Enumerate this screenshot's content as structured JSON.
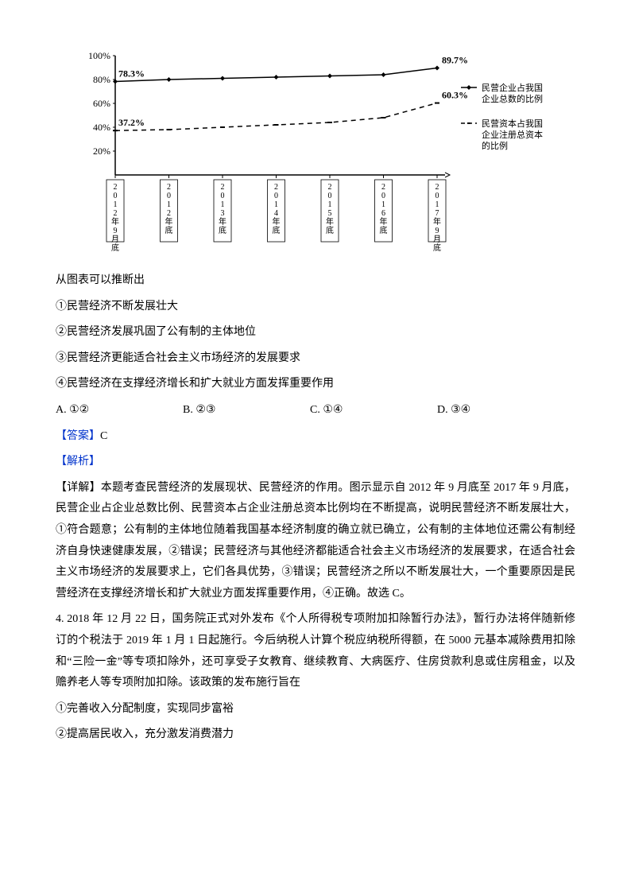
{
  "chart": {
    "type": "line",
    "categories": [
      "2012年9月底",
      "2012年底",
      "2013年底",
      "2014年底",
      "2015年底",
      "2016年底",
      "2017年9月底"
    ],
    "series": [
      {
        "name": "民营企业占我国企业总数的比例",
        "values": [
          78.3,
          80,
          81,
          82,
          83,
          84,
          89.7
        ],
        "style": "solid",
        "marker": "diamond",
        "color": "#000000",
        "start_label": "78.3%",
        "end_label": "89.7%"
      },
      {
        "name": "民营资本占我国企业注册总资本的比例",
        "values": [
          37.2,
          38,
          40,
          42,
          44,
          48,
          60.3
        ],
        "style": "dash",
        "marker": "dash",
        "color": "#000000",
        "start_label": "37.2%",
        "end_label": "60.3%"
      }
    ],
    "ylim": [
      0,
      100
    ],
    "ytick_step": 20,
    "ytick_suffix": "%",
    "background_color": "#ffffff",
    "axis_color": "#000000",
    "label_fontsize": 12,
    "text_color": "#000000"
  },
  "lead": "从图表可以推断出",
  "points": {
    "p1": "①民营经济不断发展壮大",
    "p2": "②民营经济发展巩固了公有制的主体地位",
    "p3": "③民营经济更能适合社会主义市场经济的发展要求",
    "p4": "④民营经济在支撑经济增长和扩大就业方面发挥重要作用"
  },
  "options": {
    "a": "A.  ①②",
    "b": "B.  ②③",
    "c": "C.  ①④",
    "d": "D.  ③④"
  },
  "answer_label": "【答案】",
  "answer_value": "C",
  "analysis_label": "【解析】",
  "explanation": "【详解】本题考查民营经济的发展现状、民营经济的作用。图示显示自 2012 年 9 月底至 2017 年 9 月底，民营企业占企业总数比例、民营资本占企业注册总资本比例均在不断提高，说明民营经济不断发展壮大，①符合题意；公有制的主体地位随着我国基本经济制度的确立就已确立，公有制的主体地位还需公有制经济自身快速健康发展，②错误；民营经济与其他经济都能适合社会主义市场经济的发展要求，在适合社会主义市场经济的发展要求上，它们各具优势，③错误；民营经济之所以不断发展壮大，一个重要原因是民营经济在支撑经济增长和扩大就业方面发挥重要作用，④正确。故选 C。",
  "q4": {
    "stem": "4. 2018 年 12 月 22 日，国务院正式对外发布《个人所得税专项附加扣除暂行办法》，暂行办法将伴随新修订的个税法于 2019 年 1 月 1 日起施行。今后纳税人计算个税应纳税所得额，在 5000 元基本减除费用扣除和“三险一金”等专项扣除外，还可享受子女教育、继续教育、大病医疗、住房贷款利息或住房租金，以及赡养老人等专项附加扣除。该政策的发布施行旨在",
    "p1": "①完善收入分配制度，实现同步富裕",
    "p2": "②提高居民收入，充分激发消费潜力"
  }
}
